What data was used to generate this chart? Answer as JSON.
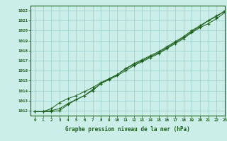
{
  "title": "Graphe pression niveau de la mer (hPa)",
  "xlim": [
    -0.5,
    23
  ],
  "ylim": [
    1011.5,
    1022.5
  ],
  "yticks": [
    1012,
    1013,
    1014,
    1015,
    1016,
    1017,
    1018,
    1019,
    1020,
    1021,
    1022
  ],
  "xticks": [
    0,
    1,
    2,
    3,
    4,
    5,
    6,
    7,
    8,
    9,
    10,
    11,
    12,
    13,
    14,
    15,
    16,
    17,
    18,
    19,
    20,
    21,
    22,
    23
  ],
  "bg_color": "#cceee8",
  "line_color": "#1a5e1a",
  "grid_color": "#99cccc",
  "title_color": "#1a5e1a",
  "line1": [
    1011.9,
    1011.9,
    1011.9,
    1012.0,
    1012.6,
    1013.1,
    1013.5,
    1014.1,
    1014.7,
    1015.1,
    1015.5,
    1016.0,
    1016.5,
    1016.9,
    1017.3,
    1017.7,
    1018.2,
    1018.7,
    1019.2,
    1019.8,
    1020.3,
    1020.7,
    1021.2,
    1021.8
  ],
  "line2": [
    1011.9,
    1011.9,
    1012.0,
    1012.2,
    1012.7,
    1013.1,
    1013.5,
    1014.0,
    1014.7,
    1015.2,
    1015.6,
    1016.2,
    1016.6,
    1017.0,
    1017.4,
    1017.8,
    1018.3,
    1018.8,
    1019.3,
    1019.9,
    1020.4,
    1021.0,
    1021.4,
    1022.0
  ],
  "line3": [
    1011.9,
    1011.9,
    1012.2,
    1012.8,
    1013.2,
    1013.5,
    1013.9,
    1014.3,
    1014.8,
    1015.2,
    1015.6,
    1016.2,
    1016.7,
    1017.1,
    1017.5,
    1017.9,
    1018.4,
    1018.9,
    1019.4,
    1020.0,
    1020.5,
    1021.0,
    1021.5,
    1021.9
  ]
}
